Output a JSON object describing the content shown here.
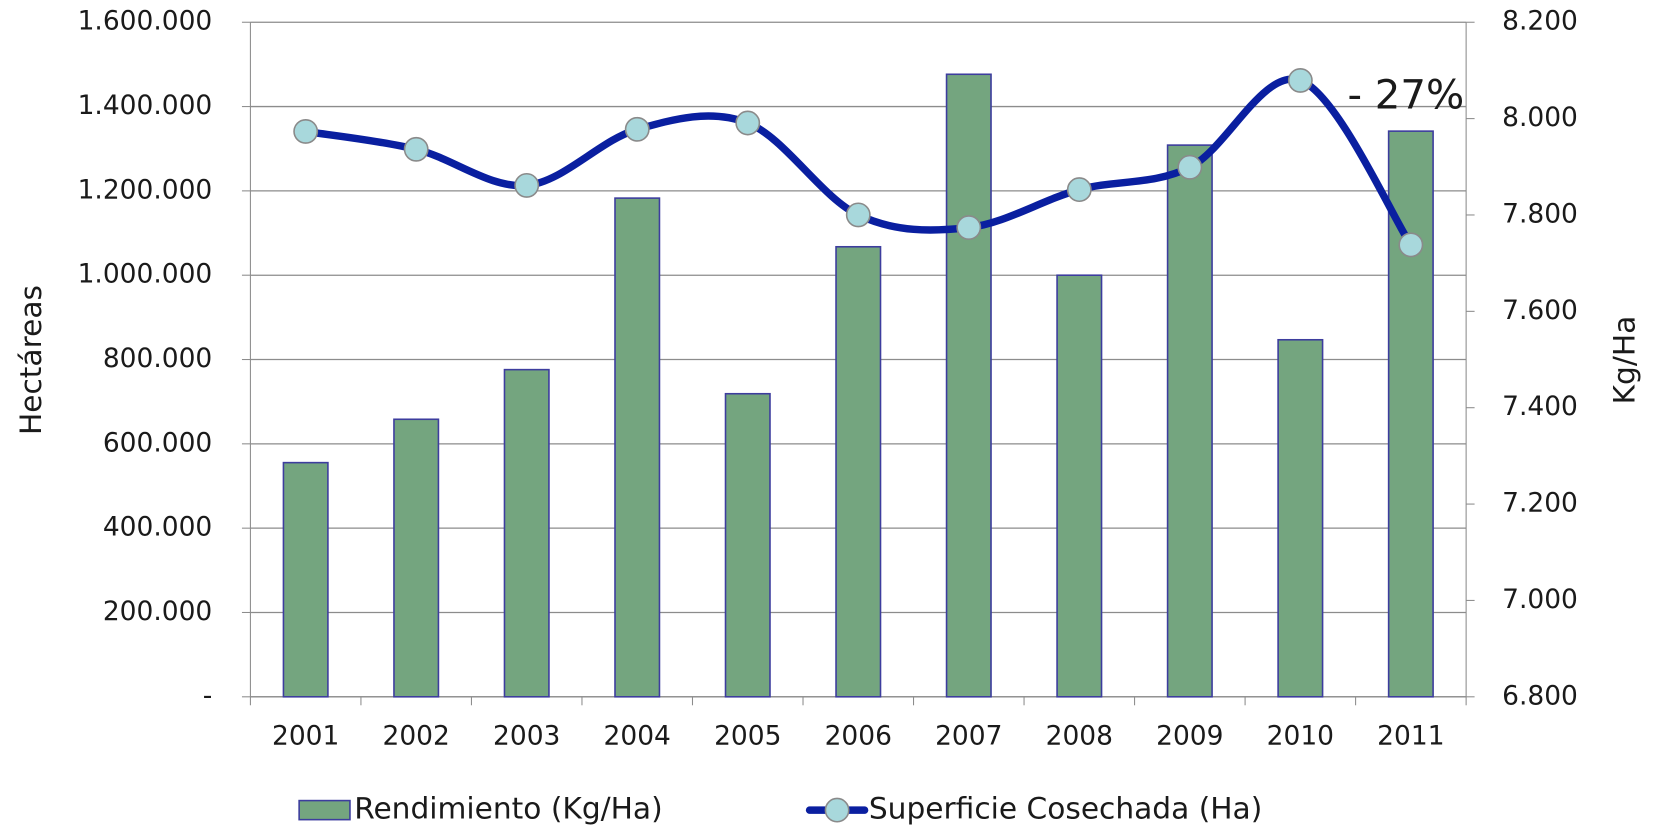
{
  "chart_data": {
    "type": "bar",
    "categories": [
      "2001",
      "2002",
      "2003",
      "2004",
      "2005",
      "2006",
      "2007",
      "2008",
      "2009",
      "2010",
      "2011"
    ],
    "series": [
      {
        "name": "Rendimiento (Kg/Ha)",
        "type": "bar",
        "axis": "y2",
        "color": "#74a57f",
        "values": [
          7286,
          7376,
          7479,
          7835,
          7429,
          7734,
          8092,
          7675,
          7945,
          7541,
          7974
        ]
      },
      {
        "name": "Superficie Cosechada (Ha)",
        "type": "line",
        "axis": "y",
        "color": "#0a1fa0",
        "values": [
          1341000,
          1298600,
          1213000,
          1346000,
          1361000,
          1143000,
          1113000,
          1203000,
          1256000,
          1462000,
          1072000
        ]
      }
    ],
    "y_label": "Hectáreas",
    "y2_label": "Kg/Ha",
    "ylim": [
      0,
      1600000
    ],
    "yticks": [
      {
        "value": 0,
        "label": "-"
      },
      {
        "value": 200000,
        "label": "200.000"
      },
      {
        "value": 400000,
        "label": "400.000"
      },
      {
        "value": 600000,
        "label": "600.000"
      },
      {
        "value": 800000,
        "label": "800.000"
      },
      {
        "value": 1000000,
        "label": "1.000.000"
      },
      {
        "value": 1200000,
        "label": "1.200.000"
      },
      {
        "value": 1400000,
        "label": "1.400.000"
      },
      {
        "value": 1600000,
        "label": "1.600.000"
      }
    ],
    "y2lim": [
      6800,
      8200
    ],
    "y2ticks": [
      {
        "value": 6800,
        "label": "6.800"
      },
      {
        "value": 7000,
        "label": "7.000"
      },
      {
        "value": 7200,
        "label": "7.200"
      },
      {
        "value": 7400,
        "label": "7.400"
      },
      {
        "value": 7600,
        "label": "7.600"
      },
      {
        "value": 7800,
        "label": "7.800"
      },
      {
        "value": 8000,
        "label": "8.000"
      },
      {
        "value": 8200,
        "label": "8.200"
      }
    ],
    "annotation": "- 27%",
    "grid": true
  }
}
